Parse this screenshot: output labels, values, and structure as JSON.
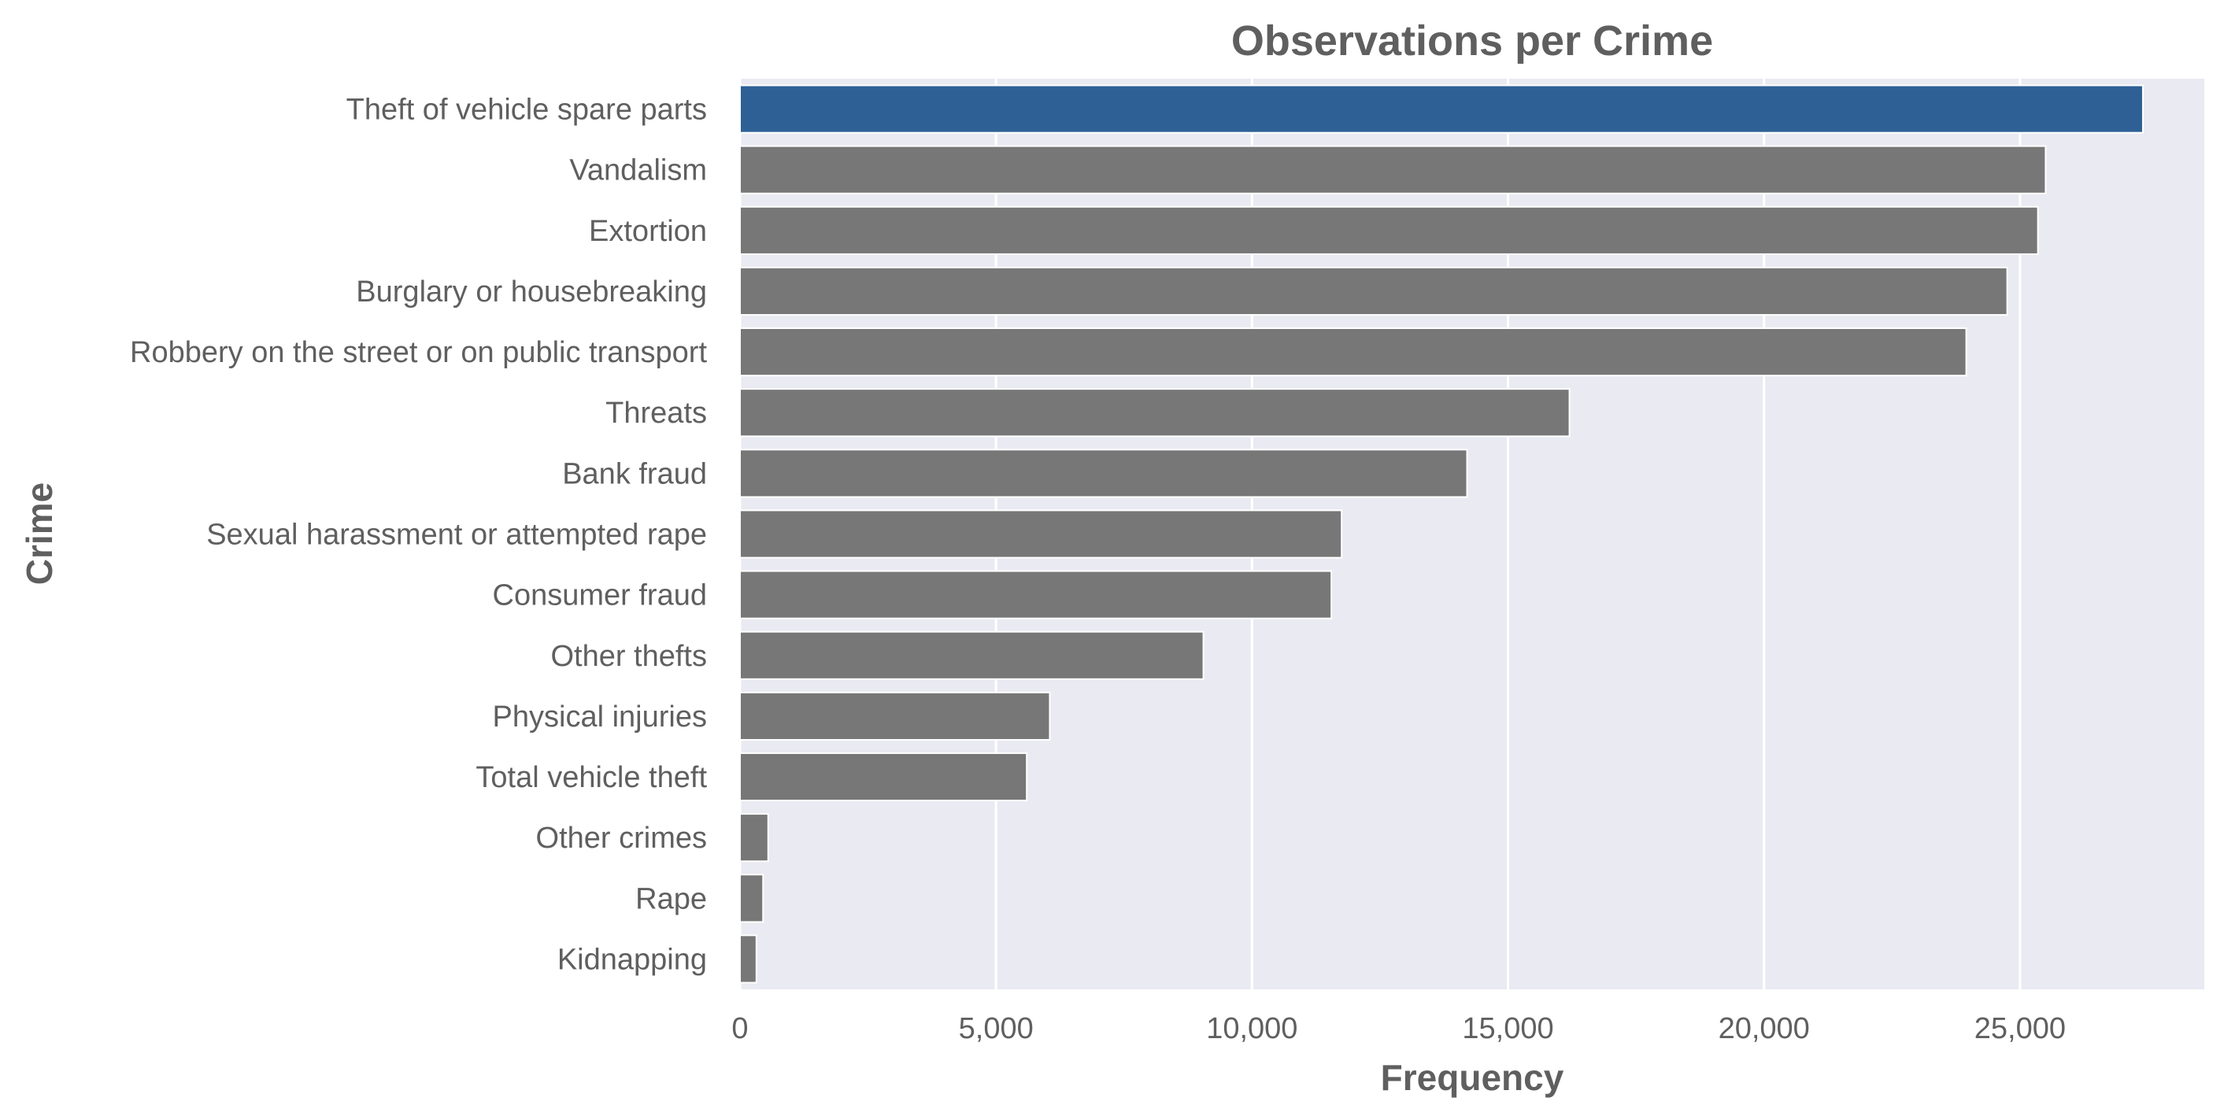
{
  "chart_data": {
    "type": "bar",
    "orientation": "horizontal",
    "title": "Observations per Crime",
    "xlabel": "Frequency",
    "ylabel": "Crime",
    "xlim": [
      0,
      28600
    ],
    "xticks": [
      0,
      5000,
      10000,
      15000,
      20000,
      25000
    ],
    "xtick_labels": [
      "0",
      "5,000",
      "10,000",
      "15,000",
      "20,000",
      "25,000"
    ],
    "grid": true,
    "categories": [
      "Theft of vehicle spare parts",
      "Vandalism",
      "Extortion",
      "Burglary or housebreaking",
      "Robbery on the street or on public transport",
      "Threats",
      "Bank fraud",
      "Sexual harassment or attempted rape",
      "Consumer fraud",
      "Other thefts",
      "Physical injuries",
      "Total vehicle theft",
      "Other crimes",
      "Rape",
      "Kidnapping"
    ],
    "values": [
      27400,
      25500,
      25350,
      24750,
      23950,
      16200,
      14200,
      11750,
      11550,
      9050,
      6050,
      5600,
      550,
      450,
      320
    ],
    "highlight_index": 0,
    "colors": {
      "highlight": "#2e6096",
      "bar": "#777777",
      "plot_background": "#eaeaf2",
      "grid": "#ffffff",
      "text": "#5f5f5f"
    }
  }
}
